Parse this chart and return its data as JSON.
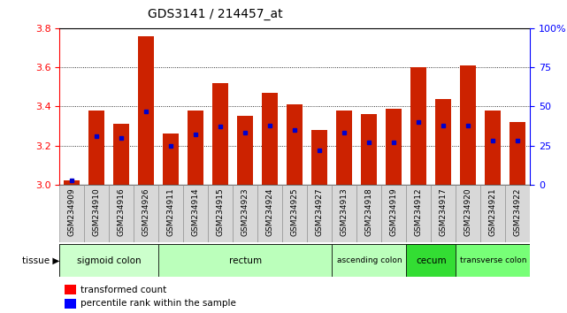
{
  "title": "GDS3141 / 214457_at",
  "samples": [
    "GSM234909",
    "GSM234910",
    "GSM234916",
    "GSM234926",
    "GSM234911",
    "GSM234914",
    "GSM234915",
    "GSM234923",
    "GSM234924",
    "GSM234925",
    "GSM234927",
    "GSM234913",
    "GSM234918",
    "GSM234919",
    "GSM234912",
    "GSM234917",
    "GSM234920",
    "GSM234921",
    "GSM234922"
  ],
  "transformed_count": [
    3.02,
    3.38,
    3.31,
    3.76,
    3.26,
    3.38,
    3.52,
    3.35,
    3.47,
    3.41,
    3.28,
    3.38,
    3.36,
    3.39,
    3.6,
    3.44,
    3.61,
    3.38,
    3.32
  ],
  "percentile_rank": [
    3,
    31,
    30,
    47,
    25,
    32,
    37,
    33,
    38,
    35,
    22,
    33,
    27,
    27,
    40,
    38,
    38,
    28,
    28
  ],
  "tissues": [
    {
      "label": "sigmoid colon",
      "start": 0,
      "end": 4,
      "color": "#ccffcc"
    },
    {
      "label": "rectum",
      "start": 4,
      "end": 11,
      "color": "#aaffaa"
    },
    {
      "label": "ascending colon",
      "start": 11,
      "end": 14,
      "color": "#bbffbb"
    },
    {
      "label": "cecum",
      "start": 14,
      "end": 16,
      "color": "#33ee33"
    },
    {
      "label": "transverse colon",
      "start": 16,
      "end": 19,
      "color": "#55ee55"
    }
  ],
  "ylim_left": [
    3.0,
    3.8
  ],
  "ylim_right": [
    0,
    100
  ],
  "yticks_left": [
    3.0,
    3.2,
    3.4,
    3.6,
    3.8
  ],
  "yticks_right": [
    0,
    25,
    50,
    75,
    100
  ],
  "bar_color": "#cc2200",
  "percentile_color": "#0000cc",
  "background_color": "#ffffff",
  "bar_width": 0.65,
  "grid_dotted": [
    3.2,
    3.4,
    3.6
  ]
}
